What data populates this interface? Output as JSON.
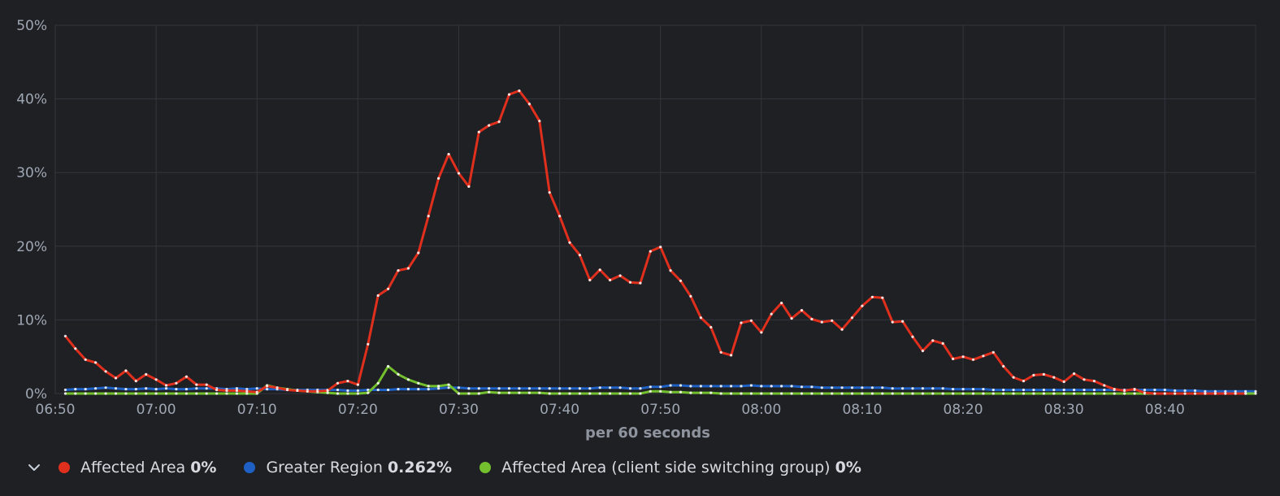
{
  "chart_data": {
    "type": "line",
    "subtitle": "per 60 seconds",
    "x_ticks": [
      "06:50",
      "07:00",
      "07:10",
      "07:20",
      "07:30",
      "07:40",
      "07:50",
      "08:00",
      "08:10",
      "08:20",
      "08:30",
      "08:40"
    ],
    "y_ticks": [
      "0%",
      "10%",
      "20%",
      "30%",
      "40%",
      "50%"
    ],
    "ylim": [
      0,
      50
    ],
    "xlim": [
      "06:50",
      "08:49"
    ],
    "grid": true,
    "legend_placement": "bottom-left",
    "series": [
      {
        "name": "Affected Area",
        "color": "#e02f1c",
        "legend_value": "0%",
        "start": "06:51",
        "values": [
          7.8,
          6.1,
          4.6,
          4.2,
          3.0,
          2.1,
          3.1,
          1.7,
          2.6,
          1.9,
          1.1,
          1.4,
          2.3,
          1.2,
          1.2,
          0.5,
          0.4,
          0.4,
          0.3,
          0.2,
          1.0,
          0.8,
          0.5,
          0.4,
          0.3,
          0.3,
          0.4,
          1.4,
          1.7,
          1.2,
          6.7,
          13.3,
          14.2,
          16.7,
          17.0,
          19.1,
          24.1,
          29.2,
          32.5,
          29.9,
          28.1,
          35.5,
          36.4,
          36.9,
          40.6,
          41.1,
          39.3,
          37.0,
          27.3,
          24.1,
          20.5,
          18.8,
          15.4,
          16.8,
          15.4,
          16.0,
          15.1,
          15.0,
          19.3,
          19.9,
          16.7,
          15.3,
          13.2,
          10.3,
          9.0,
          5.6,
          5.2,
          9.6,
          9.9,
          8.3,
          10.8,
          12.3,
          10.2,
          11.3,
          10.1,
          9.7,
          9.9,
          8.7,
          10.3,
          11.9,
          13.1,
          13.0,
          9.7,
          9.8,
          7.7,
          5.8,
          7.2,
          6.8,
          4.7,
          5.0,
          4.6,
          5.1,
          5.6,
          3.7,
          2.2,
          1.7,
          2.5,
          2.6,
          2.2,
          1.6,
          2.7,
          1.9,
          1.7,
          1.1,
          0.6,
          0.4,
          0.6,
          0.1,
          0.0,
          0.0,
          0.0,
          0.0,
          0.0,
          0.0,
          0.0,
          0.0,
          0.0,
          0.0
        ]
      },
      {
        "name": "Greater Region",
        "color": "#1f60c4",
        "legend_value": "0.262%",
        "start": "06:51",
        "values": [
          0.5,
          0.6,
          0.6,
          0.7,
          0.8,
          0.7,
          0.6,
          0.6,
          0.7,
          0.6,
          0.7,
          0.6,
          0.6,
          0.7,
          0.7,
          0.7,
          0.6,
          0.7,
          0.6,
          0.7,
          0.6,
          0.6,
          0.5,
          0.5,
          0.5,
          0.5,
          0.5,
          0.5,
          0.4,
          0.4,
          0.5,
          0.5,
          0.5,
          0.6,
          0.6,
          0.6,
          0.6,
          0.7,
          0.8,
          0.8,
          0.7,
          0.7,
          0.7,
          0.7,
          0.7,
          0.7,
          0.7,
          0.7,
          0.7,
          0.7,
          0.7,
          0.7,
          0.7,
          0.8,
          0.8,
          0.8,
          0.7,
          0.7,
          0.9,
          0.9,
          1.1,
          1.1,
          1.0,
          1.0,
          1.0,
          1.0,
          1.0,
          1.0,
          1.1,
          1.0,
          1.0,
          1.0,
          1.0,
          0.9,
          0.9,
          0.8,
          0.8,
          0.8,
          0.8,
          0.8,
          0.8,
          0.8,
          0.7,
          0.7,
          0.7,
          0.7,
          0.7,
          0.7,
          0.6,
          0.6,
          0.6,
          0.6,
          0.5,
          0.5,
          0.5,
          0.5,
          0.5,
          0.5,
          0.5,
          0.5,
          0.5,
          0.5,
          0.5,
          0.5,
          0.5,
          0.5,
          0.5,
          0.5,
          0.5,
          0.5,
          0.4,
          0.4,
          0.4,
          0.3,
          0.3,
          0.3,
          0.3,
          0.3,
          0.3
        ]
      },
      {
        "name": "Affected Area (client side switching group)",
        "color": "#73bf2e",
        "legend_value": "0%",
        "start": "06:51",
        "values": [
          0.0,
          0.0,
          0.0,
          0.0,
          0.0,
          0.0,
          0.0,
          0.0,
          0.0,
          0.0,
          0.0,
          0.0,
          0.0,
          0.0,
          0.0,
          0.0,
          0.0,
          0.0,
          0.0,
          0.0,
          1.1,
          0.8,
          0.6,
          0.4,
          0.3,
          0.2,
          0.1,
          0.0,
          0.0,
          0.0,
          0.1,
          1.4,
          3.7,
          2.6,
          1.9,
          1.4,
          1.0,
          1.0,
          1.2,
          0.0,
          0.0,
          0.0,
          0.2,
          0.1,
          0.1,
          0.1,
          0.1,
          0.1,
          0.0,
          0.0,
          0.0,
          0.0,
          0.0,
          0.0,
          0.0,
          0.0,
          0.0,
          0.0,
          0.3,
          0.3,
          0.2,
          0.2,
          0.1,
          0.1,
          0.1,
          0.0,
          0.0,
          0.0,
          0.0,
          0.0,
          0.0,
          0.0,
          0.0,
          0.0,
          0.0,
          0.0,
          0.0,
          0.0,
          0.0,
          0.0,
          0.0,
          0.0,
          0.0,
          0.0,
          0.0,
          0.0,
          0.0,
          0.0,
          0.0,
          0.0,
          0.0,
          0.0,
          0.0,
          0.0,
          0.0,
          0.0,
          0.0,
          0.0,
          0.0,
          0.0,
          0.0,
          0.0,
          0.0,
          0.0,
          0.0,
          0.0,
          0.0,
          0.0,
          0.0,
          0.0,
          0.0,
          0.0,
          0.0,
          0.0,
          0.0,
          0.0,
          0.0,
          0.0,
          0.0
        ]
      }
    ]
  },
  "legend": {
    "toggle_icon": "chevron-down-icon"
  }
}
